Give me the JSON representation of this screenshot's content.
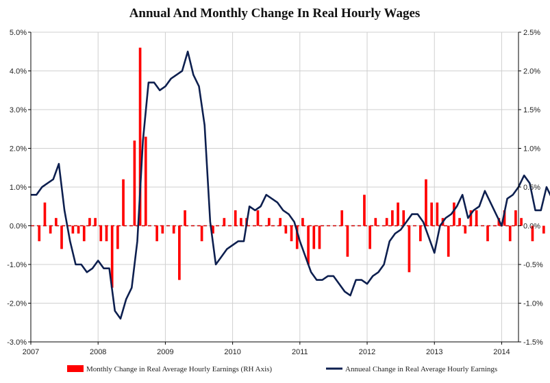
{
  "chart_data": {
    "type": "bar+line",
    "title": "Annual And Monthly  Change In Real Hourly Wages",
    "x_range": [
      2007.0,
      2014.25
    ],
    "x_ticks": [
      "2007",
      "2008",
      "2009",
      "2010",
      "2011",
      "2012",
      "2013",
      "2014"
    ],
    "left_axis": {
      "ylim": [
        -3.0,
        5.0
      ],
      "ticks": [
        5,
        4,
        3,
        2,
        1,
        0,
        -1,
        -2,
        -3
      ],
      "tick_labels": [
        "5.0%",
        "4.0%",
        "3.0%",
        "2.0%",
        "1.0%",
        "0.0%",
        "-1.0%",
        "-2.0%",
        "-3.0%"
      ]
    },
    "right_axis": {
      "ylim": [
        -1.5,
        2.5
      ],
      "ticks": [
        2.5,
        2.0,
        1.5,
        1.0,
        0.5,
        0.0,
        -0.5,
        -1.0,
        -1.5
      ],
      "tick_labels": [
        "2.5%",
        "2.0%",
        "1.5%",
        "1.0%",
        "0.5%",
        "0.0%",
        "-0.5%",
        "-1.0%",
        "-1.5%"
      ]
    },
    "series": [
      {
        "name": "Monthly Change in Real Average Hourly Earnings (RH Axis)",
        "type": "bar",
        "axis": "right",
        "color": "#ff0000",
        "start": "2007-01",
        "values": [
          0.0,
          -0.2,
          0.3,
          -0.1,
          0.1,
          -0.3,
          0.0,
          -0.1,
          -0.1,
          -0.2,
          0.1,
          0.1,
          -0.2,
          -0.2,
          -0.8,
          -0.3,
          0.6,
          0.0,
          1.1,
          2.3,
          1.15,
          0.0,
          -0.2,
          -0.1,
          0.0,
          -0.1,
          -0.7,
          0.2,
          0.0,
          0.0,
          -0.2,
          0.0,
          -0.1,
          0.0,
          0.1,
          0.0,
          0.2,
          0.1,
          0.1,
          0.0,
          0.2,
          0.0,
          0.1,
          0.0,
          0.1,
          -0.1,
          -0.2,
          -0.3,
          0.1,
          -0.5,
          -0.3,
          -0.3,
          0.0,
          0.0,
          0.0,
          0.2,
          -0.4,
          0.0,
          0.0,
          0.4,
          -0.3,
          0.1,
          0.0,
          0.1,
          0.2,
          0.3,
          0.2,
          -0.6,
          0.0,
          -0.2,
          0.6,
          0.3,
          0.3,
          0.1,
          -0.4,
          0.3,
          0.1,
          -0.1,
          0.2,
          0.2,
          0.0,
          -0.2,
          0.0,
          0.1,
          0.2,
          -0.2,
          0.2,
          0.1,
          0.0,
          -0.2,
          0.0,
          -0.1,
          0.0,
          -0.2
        ]
      },
      {
        "name": "Annueal Change in Real Average Hourly Earnings",
        "type": "line",
        "axis": "left",
        "color": "#0d1f4f",
        "start": "2007-01",
        "values": [
          0.8,
          0.8,
          1.0,
          1.1,
          1.2,
          1.6,
          0.4,
          -0.4,
          -1.0,
          -1.0,
          -1.2,
          -1.1,
          -0.9,
          -1.1,
          -1.1,
          -2.2,
          -2.4,
          -1.9,
          -1.6,
          -0.4,
          2.2,
          3.7,
          3.7,
          3.5,
          3.6,
          3.8,
          3.9,
          4.0,
          4.5,
          3.9,
          3.6,
          2.6,
          0.1,
          -1.0,
          -0.8,
          -0.6,
          -0.5,
          -0.4,
          -0.4,
          0.5,
          0.4,
          0.5,
          0.8,
          0.7,
          0.6,
          0.4,
          0.3,
          0.1,
          -0.4,
          -0.8,
          -1.2,
          -1.4,
          -1.4,
          -1.3,
          -1.3,
          -1.5,
          -1.7,
          -1.8,
          -1.4,
          -1.4,
          -1.5,
          -1.3,
          -1.2,
          -1.0,
          -0.4,
          -0.2,
          -0.1,
          0.1,
          0.3,
          0.3,
          0.1,
          -0.3,
          -0.7,
          0.0,
          0.2,
          0.3,
          0.5,
          0.8,
          0.2,
          0.4,
          0.5,
          0.9,
          0.6,
          0.3,
          0.0,
          0.7,
          0.8,
          1.0,
          1.3,
          1.1,
          0.4,
          0.4,
          1.0,
          0.7,
          0.0
        ]
      }
    ]
  }
}
